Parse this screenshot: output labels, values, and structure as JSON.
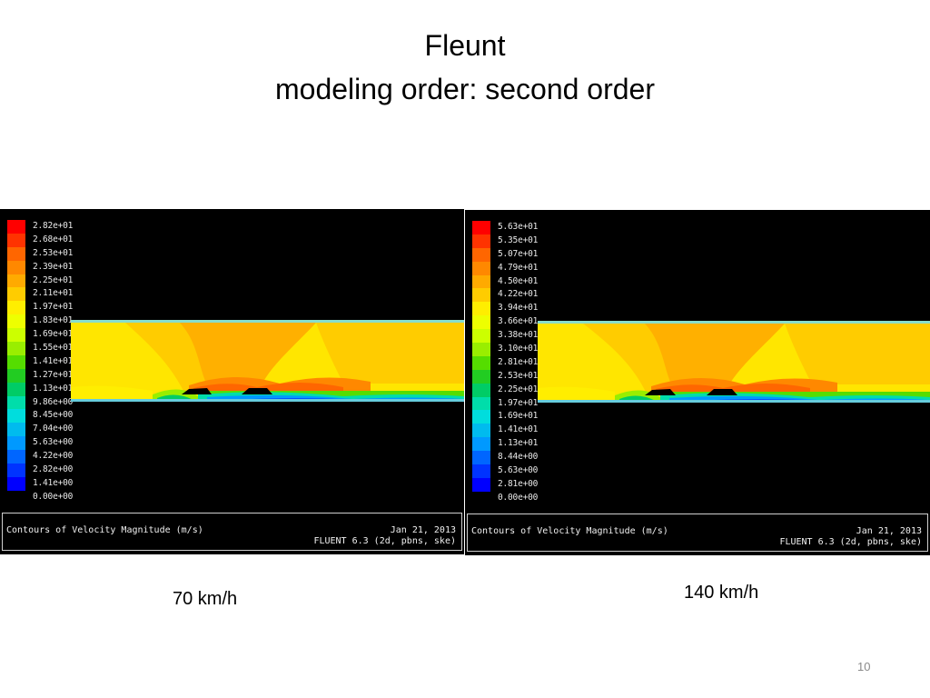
{
  "title": {
    "line1": "Fleunt",
    "line2": "modeling order: second order"
  },
  "colors": {
    "legend_scale": [
      "#ff0000",
      "#ff3300",
      "#ff6600",
      "#ff8800",
      "#ffaa00",
      "#ffcc00",
      "#ffee00",
      "#eeff00",
      "#ccff00",
      "#99ee00",
      "#55dd00",
      "#22cc22",
      "#00cc66",
      "#00ddaa",
      "#00dddd",
      "#00bbee",
      "#0099ff",
      "#0066ff",
      "#0033ff",
      "#0000ff"
    ],
    "field_base": "#ffe600",
    "field_warm": "#ffb000",
    "field_hot": "#ff6600"
  },
  "panels": {
    "left": {
      "legend_labels": [
        "2.82e+01",
        "2.68e+01",
        "2.53e+01",
        "2.39e+01",
        "2.25e+01",
        "2.11e+01",
        "1.97e+01",
        "1.83e+01",
        "1.69e+01",
        "1.55e+01",
        "1.41e+01",
        "1.27e+01",
        "1.13e+01",
        "9.86e+00",
        "8.45e+00",
        "7.04e+00",
        "5.63e+00",
        "4.22e+00",
        "2.82e+00",
        "1.41e+00",
        "0.00e+00"
      ],
      "caption": "Contours of Velocity Magnitude (m/s)",
      "date": "Jan 21, 2013",
      "solver": "FLUENT 6.3 (2d, pbns, ske)"
    },
    "right": {
      "legend_labels": [
        "5.63e+01",
        "5.35e+01",
        "5.07e+01",
        "4.79e+01",
        "4.50e+01",
        "4.22e+01",
        "3.94e+01",
        "3.66e+01",
        "3.38e+01",
        "3.10e+01",
        "2.81e+01",
        "2.53e+01",
        "2.25e+01",
        "1.97e+01",
        "1.69e+01",
        "1.41e+01",
        "1.13e+01",
        "8.44e+00",
        "5.63e+00",
        "2.81e+00",
        "0.00e+00"
      ],
      "caption": "Contours of Velocity Magnitude (m/s)",
      "date": "Jan 21, 2013",
      "solver": "FLUENT 6.3 (2d, pbns, ske)"
    }
  },
  "speeds": {
    "left": "70 km/h",
    "right": "140 km/h"
  },
  "page_number": "10"
}
